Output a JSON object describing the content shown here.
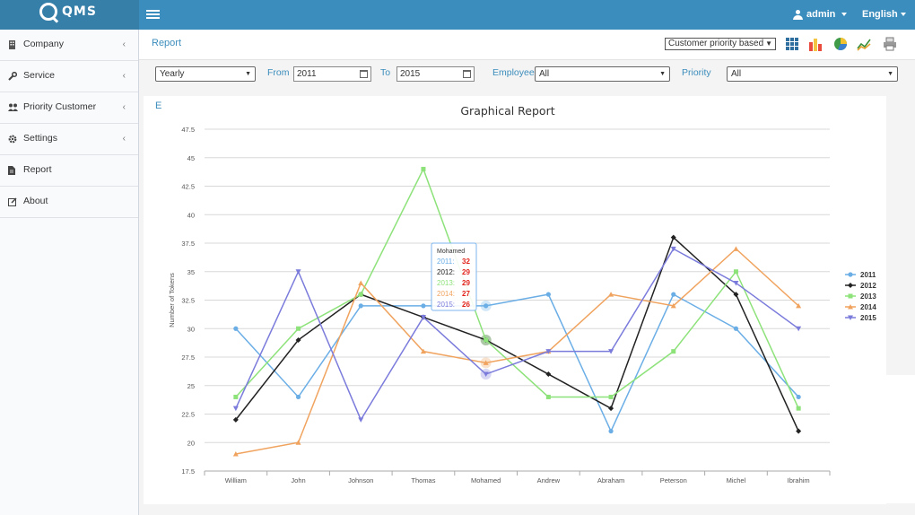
{
  "app": {
    "logo_text": "QMS"
  },
  "topbar": {
    "user": "admin",
    "language": "English"
  },
  "sidebar": {
    "items": [
      {
        "label": "Company",
        "icon": "building-icon",
        "has_submenu": true
      },
      {
        "label": "Service",
        "icon": "wrench-icon",
        "has_submenu": true
      },
      {
        "label": "Priority Customer",
        "icon": "users-icon",
        "has_submenu": true
      },
      {
        "label": "Settings",
        "icon": "gear-icon",
        "has_submenu": true
      },
      {
        "label": "Report",
        "icon": "file-icon",
        "has_submenu": false
      },
      {
        "label": "About",
        "icon": "edit-icon",
        "has_submenu": false
      }
    ]
  },
  "header": {
    "title": "Report",
    "report_type": "Customer priority based",
    "tools": [
      "grid-icon",
      "bar-chart-icon",
      "pie-chart-icon",
      "line-chart-icon",
      "print-icon"
    ]
  },
  "filters": {
    "period": "Yearly",
    "from_label": "From",
    "from_value": "2011",
    "to_label": "To",
    "to_value": "2015",
    "employee_label": "Employee",
    "employee_value": "All",
    "priority_label": "Priority",
    "priority_value": "All"
  },
  "left_stub": "E",
  "colors": {
    "accent": "#3c8dbc",
    "topbar": "#3b8dbd"
  },
  "chart_data": {
    "type": "line",
    "title": "Graphical Report",
    "ylabel": "Number of Tokens",
    "xlabel": "",
    "categories": [
      "William",
      "John",
      "Johnson",
      "Thomas",
      "Mohamed",
      "Andrew",
      "Abraham",
      "Peterson",
      "Michel",
      "Ibrahim"
    ],
    "ylim": [
      17.5,
      47.5
    ],
    "yticks": [
      "17.5",
      "20",
      "22.5",
      "25",
      "27.5",
      "30",
      "32.5",
      "35",
      "37.5",
      "40",
      "42.5",
      "45",
      "47.5"
    ],
    "grid": true,
    "legend": "right",
    "series": [
      {
        "name": "2011",
        "color": "#6baee6",
        "marker": "circle",
        "values": [
          30,
          24,
          32,
          32,
          32,
          33,
          21,
          33,
          30,
          24
        ]
      },
      {
        "name": "2012",
        "color": "#222222",
        "marker": "diamond",
        "values": [
          22,
          29,
          33,
          31,
          29,
          26,
          23,
          38,
          33,
          21
        ]
      },
      {
        "name": "2013",
        "color": "#8de27a",
        "marker": "square",
        "values": [
          24,
          30,
          33,
          44,
          29,
          24,
          24,
          28,
          35,
          23
        ]
      },
      {
        "name": "2014",
        "color": "#f0a35e",
        "marker": "triangle",
        "values": [
          19,
          20,
          34,
          28,
          27,
          28,
          33,
          32,
          37,
          32
        ]
      },
      {
        "name": "2015",
        "color": "#7b7bdc",
        "marker": "triangle-down",
        "values": [
          23,
          35,
          22,
          31,
          26,
          28,
          28,
          37,
          34,
          30
        ]
      }
    ],
    "tooltip": {
      "category": "Mohamed",
      "rows": [
        {
          "series": "2011",
          "value": "32"
        },
        {
          "series": "2012",
          "value": "29"
        },
        {
          "series": "2013",
          "value": "29"
        },
        {
          "series": "2014",
          "value": "27"
        },
        {
          "series": "2015",
          "value": "26"
        }
      ]
    }
  }
}
